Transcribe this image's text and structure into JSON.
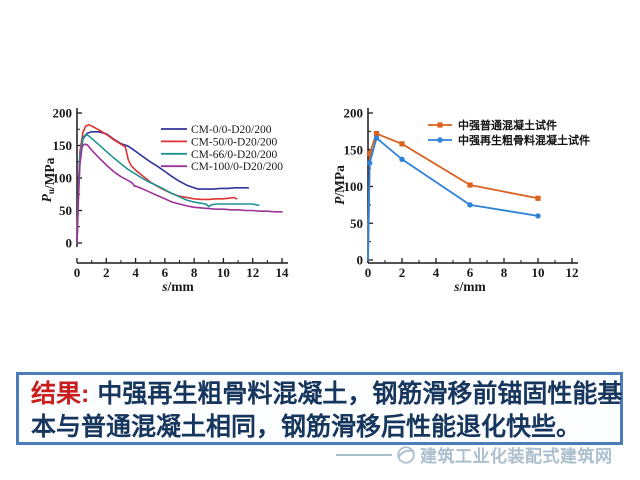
{
  "slide": {
    "banner": {
      "label": "结果:",
      "line1": "中强再生粗骨料混凝土，钢筋滑移前锚固性能基",
      "line2": "本与普通混凝土相同，钢筋滑移后性能退化快些。",
      "border_color": "#4d7cba",
      "label_color": "#c81e1e",
      "text_color": "#17365d",
      "background": "#fbfdff"
    },
    "watermark": {
      "text": "建筑工业化装配式建筑网",
      "color": "#a2b9c8"
    }
  },
  "chart_data": [
    {
      "id": "left-bond-slip-chart",
      "type": "line",
      "title": "",
      "xlabel": [
        {
          "t": "s",
          "italic": true
        },
        {
          "t": "/mm"
        }
      ],
      "ylabel": [
        {
          "t": "P",
          "italic": true
        },
        {
          "t": "u",
          "sub": true
        },
        {
          "t": "/MPa"
        }
      ],
      "xlim": [
        0,
        14
      ],
      "ylim": [
        0,
        200
      ],
      "xticks": [
        0,
        2,
        4,
        6,
        8,
        10,
        12,
        14
      ],
      "yticks": [
        0,
        50,
        100,
        150,
        200
      ],
      "grid": false,
      "legend_position": "top-right",
      "ink": "#1a1a1a",
      "line_width": 1.6,
      "series": [
        {
          "name": "CM-0/0-D20/200",
          "color": "#32329b",
          "points": [
            [
              0,
              0
            ],
            [
              0.1,
              80
            ],
            [
              0.2,
              130
            ],
            [
              0.4,
              160
            ],
            [
              0.7,
              169
            ],
            [
              1,
              171
            ],
            [
              1.5,
              171
            ],
            [
              2,
              168
            ],
            [
              2.5,
              160
            ],
            [
              3,
              153
            ],
            [
              3.5,
              149
            ],
            [
              4,
              141
            ],
            [
              4.5,
              133
            ],
            [
              5,
              125
            ],
            [
              5.5,
              118
            ],
            [
              6,
              110
            ],
            [
              6.5,
              102
            ],
            [
              7,
              95
            ],
            [
              7.5,
              89
            ],
            [
              8,
              85
            ],
            [
              8.3,
              83
            ],
            [
              8.8,
              83
            ],
            [
              9.3,
              83
            ],
            [
              9.8,
              84
            ],
            [
              10.3,
              84
            ],
            [
              10.8,
              85
            ],
            [
              11.3,
              85
            ],
            [
              11.7,
              85
            ]
          ]
        },
        {
          "name": "CM-50/0-D20/200",
          "color": "#e03131",
          "points": [
            [
              0,
              0
            ],
            [
              0.1,
              90
            ],
            [
              0.2,
              140
            ],
            [
              0.4,
              170
            ],
            [
              0.6,
              180
            ],
            [
              0.8,
              182
            ],
            [
              1,
              180
            ],
            [
              1.5,
              174
            ],
            [
              2,
              167
            ],
            [
              2.5,
              159
            ],
            [
              3,
              152
            ],
            [
              3.3,
              148
            ],
            [
              3.5,
              128
            ],
            [
              3.7,
              119
            ],
            [
              4,
              112
            ],
            [
              4.5,
              103
            ],
            [
              5,
              94
            ],
            [
              5.5,
              87
            ],
            [
              6,
              81
            ],
            [
              6.5,
              76
            ],
            [
              7,
              72
            ],
            [
              7.5,
              70
            ],
            [
              8,
              68
            ],
            [
              8.5,
              67
            ],
            [
              9,
              67
            ],
            [
              9.5,
              68
            ],
            [
              10,
              68
            ],
            [
              10.4,
              69
            ],
            [
              10.7,
              70
            ],
            [
              10.9,
              68
            ]
          ]
        },
        {
          "name": "CM-66/0-D20/200",
          "color": "#1f9494",
          "points": [
            [
              0,
              0
            ],
            [
              0.1,
              85
            ],
            [
              0.2,
              135
            ],
            [
              0.4,
              162
            ],
            [
              0.6,
              167
            ],
            [
              0.8,
              165
            ],
            [
              1,
              161
            ],
            [
              1.5,
              151
            ],
            [
              2,
              141
            ],
            [
              2.5,
              131
            ],
            [
              3,
              122
            ],
            [
              3.5,
              113
            ],
            [
              4,
              106
            ],
            [
              4.5,
              99
            ],
            [
              5,
              93
            ],
            [
              5.5,
              88
            ],
            [
              6,
              82
            ],
            [
              6.5,
              76
            ],
            [
              7,
              71
            ],
            [
              7.5,
              66
            ],
            [
              8,
              63
            ],
            [
              8.5,
              61
            ],
            [
              8.8,
              60
            ],
            [
              9,
              56
            ],
            [
              9.2,
              59
            ],
            [
              9.6,
              60
            ],
            [
              10,
              60
            ],
            [
              10.5,
              60
            ],
            [
              11,
              60
            ],
            [
              11.5,
              60
            ],
            [
              12,
              60
            ],
            [
              12.4,
              58
            ]
          ]
        },
        {
          "name": "CM-100/0-D20/200",
          "color": "#9c3399",
          "points": [
            [
              0,
              0
            ],
            [
              0.1,
              70
            ],
            [
              0.2,
              120
            ],
            [
              0.35,
              148
            ],
            [
              0.5,
              152
            ],
            [
              0.7,
              151
            ],
            [
              1,
              143
            ],
            [
              1.5,
              131
            ],
            [
              2,
              120
            ],
            [
              2.5,
              110
            ],
            [
              3,
              102
            ],
            [
              3.5,
              96
            ],
            [
              3.8,
              92
            ],
            [
              3.9,
              88
            ],
            [
              4.2,
              86
            ],
            [
              4.6,
              82
            ],
            [
              5,
              78
            ],
            [
              5.5,
              73
            ],
            [
              6,
              68
            ],
            [
              6.5,
              63
            ],
            [
              7,
              60
            ],
            [
              7.5,
              57
            ],
            [
              8,
              55
            ],
            [
              8.5,
              54
            ],
            [
              9,
              53
            ],
            [
              9.5,
              52
            ],
            [
              10,
              52
            ],
            [
              10.5,
              51
            ],
            [
              11,
              51
            ],
            [
              11.5,
              50
            ],
            [
              12,
              50
            ],
            [
              12.5,
              49
            ],
            [
              13,
              49
            ],
            [
              13.5,
              48
            ],
            [
              14,
              48
            ]
          ]
        }
      ]
    },
    {
      "id": "right-comparison-chart",
      "type": "line",
      "title": "",
      "xlabel": [
        {
          "t": "s",
          "italic": true
        },
        {
          "t": "/mm"
        }
      ],
      "ylabel": [
        {
          "t": "P",
          "italic": true
        },
        {
          "t": "/MPa"
        }
      ],
      "xlim": [
        0,
        12
      ],
      "ylim": [
        0,
        200
      ],
      "xticks": [
        0,
        2,
        4,
        6,
        8,
        10,
        12
      ],
      "yticks": [
        0,
        50,
        100,
        150,
        200
      ],
      "grid": false,
      "legend_position": "top-right",
      "ink": "#1a1a1a",
      "line_width": 1.8,
      "series": [
        {
          "name": "中强普通混凝土试件",
          "color": "#d9601e",
          "marker": "square",
          "marker_from": 1,
          "points": [
            [
              0,
              0
            ],
            [
              0.1,
              145
            ],
            [
              0.5,
              172
            ],
            [
              2,
              158
            ],
            [
              6,
              102
            ],
            [
              10,
              84
            ]
          ]
        },
        {
          "name": "中强再生粗骨料混凝土试件",
          "color": "#2e82d8",
          "marker": "circle",
          "marker_from": 1,
          "points": [
            [
              0,
              0
            ],
            [
              0.1,
              132
            ],
            [
              0.5,
              166
            ],
            [
              2,
              137
            ],
            [
              6,
              75
            ],
            [
              10,
              60
            ]
          ]
        }
      ]
    }
  ]
}
